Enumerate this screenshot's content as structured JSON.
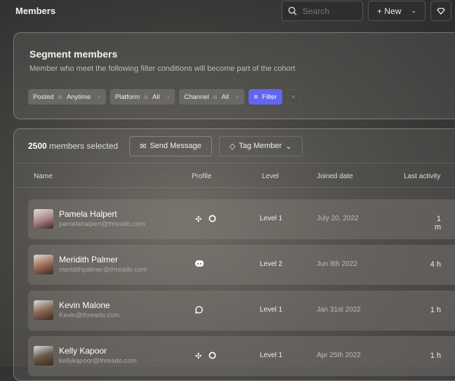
{
  "header": {
    "title": "Members",
    "search_placeholder": "Search",
    "new_label": "+ New"
  },
  "segment": {
    "title": "Segment members",
    "subtitle": "Member who meet the following filter conditions will become part of the cohort",
    "filters": [
      {
        "field": "Posted",
        "op": "in",
        "value": "Anytime"
      },
      {
        "field": "Platform",
        "op": "is",
        "value": "All"
      },
      {
        "field": "Channel",
        "op": "is",
        "value": "All"
      }
    ],
    "filter_label": "Filter",
    "clear_label": "×",
    "remove_label": "×"
  },
  "members": {
    "count": "2500",
    "count_suffix": "members selected",
    "send_message": "Send Message",
    "tag_member": "Tag Member",
    "columns": [
      "Name",
      "Profile",
      "Level",
      "Joined date",
      "Last activity"
    ],
    "rows": [
      {
        "name": "Pamela Halpert",
        "email": "pamelahalpert@threado.com",
        "profiles": [
          "slack",
          "github"
        ],
        "level": "Level 1",
        "joined": "July 20, 2022",
        "last": "1 m",
        "avatar_color": "#b08a8c"
      },
      {
        "name": "Meridith Palmer",
        "email": "meridithpalmer@threado.com",
        "profiles": [
          "discord"
        ],
        "level": "Level 2",
        "joined": "Jun 8th 2022",
        "last": "4 h",
        "avatar_color": "#a0705a"
      },
      {
        "name": "Kevin Malone",
        "email": "Kevin@threado.com",
        "profiles": [
          "chat"
        ],
        "level": "Level 1",
        "joined": "Jan 31st 2022",
        "last": "1 h",
        "avatar_color": "#8a6a58"
      },
      {
        "name": "Kelly Kapoor",
        "email": "kellykapoor@threado.com",
        "profiles": [
          "slack",
          "github"
        ],
        "level": "Level 1",
        "joined": "Apr 25th 2022",
        "last": "1 h",
        "avatar_color": "#6a5a4a"
      }
    ]
  },
  "colors": {
    "accent": "#6366f1"
  }
}
